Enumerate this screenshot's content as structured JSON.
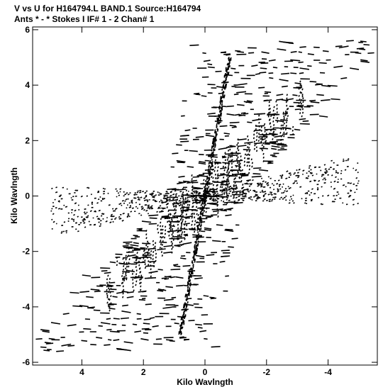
{
  "header": {
    "line1": "V vs U for H164794.L BAND.1   Source:H164794",
    "line2": "Ants * - *     Stokes I  IF# 1 - 2  Chan# 1"
  },
  "chart_data": {
    "type": "scatter",
    "title": "V vs U for H164794.L BAND.1   Source:H164794",
    "subtitle": "Ants * - *     Stokes I  IF# 1 - 2  Chan# 1",
    "xlabel": "Kilo Wavlngth",
    "ylabel": "Kilo Wavlngth",
    "xlim": [
      5.6,
      -5.6
    ],
    "ylim": [
      -6.1,
      6.1
    ],
    "x_reversed": true,
    "x_ticks": [
      4,
      2,
      0,
      -2,
      -4
    ],
    "x_tick_labels": [
      "4",
      "2",
      "0",
      "-2",
      "-4"
    ],
    "y_ticks": [
      -6,
      -4,
      -2,
      0,
      2,
      4,
      6
    ],
    "y_tick_labels": [
      "-6",
      "-4",
      "-2",
      "0",
      "2",
      "4",
      "6"
    ],
    "grid": false,
    "legend": "none",
    "marker_color": "#000000",
    "description_tracks": [
      {
        "name": "steep-diagonal",
        "from": [
          -0.8,
          5.0
        ],
        "to": [
          0.8,
          -5.0
        ]
      },
      {
        "name": "shallow-arms",
        "from": [
          -5.0,
          0.5
        ],
        "to": [
          5.0,
          -0.5
        ]
      },
      {
        "name": "wide-band",
        "from": [
          -5.2,
          5.8
        ],
        "to": [
          5.2,
          -5.8
        ]
      }
    ]
  }
}
